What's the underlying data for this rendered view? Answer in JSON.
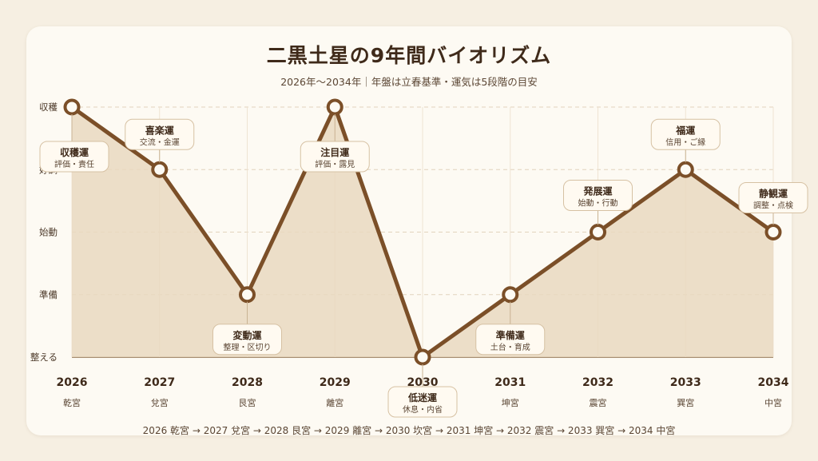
{
  "chart_data": {
    "type": "line",
    "title": "二黒土星の9年間バイオリズム",
    "subtitle": "2026年〜2034年｜年盤は立春基準・運気は5段階の目安",
    "y_levels": [
      "整える",
      "準備",
      "始動",
      "好調",
      "収穫"
    ],
    "ylim": [
      1,
      5
    ],
    "grid": true,
    "x": [
      "2026",
      "2027",
      "2028",
      "2029",
      "2030",
      "2031",
      "2032",
      "2033",
      "2034"
    ],
    "palaces": [
      "乾宮",
      "兌宮",
      "艮宮",
      "離宮",
      "坎宮",
      "坤宮",
      "震宮",
      "巽宮",
      "中宮"
    ],
    "values": [
      5,
      4,
      2,
      5,
      1,
      2,
      3,
      4,
      3
    ],
    "annotations": [
      {
        "title": "収穫運",
        "sub": "評価・責任"
      },
      {
        "title": "喜楽運",
        "sub": "交流・金運"
      },
      {
        "title": "変動運",
        "sub": "整理・区切り"
      },
      {
        "title": "注目運",
        "sub": "評価・露見"
      },
      {
        "title": "低迷運",
        "sub": "休息・内省"
      },
      {
        "title": "準備運",
        "sub": "土台・育成"
      },
      {
        "title": "発展運",
        "sub": "始動・行動"
      },
      {
        "title": "福運",
        "sub": "信用・ご縁"
      },
      {
        "title": "静観運",
        "sub": "調整・点検"
      }
    ],
    "line_color": "#7b4f28",
    "fill_color": "#e9d8bf"
  },
  "footer": "2026 乾宮 → 2027 兌宮 → 2028 艮宮 → 2029 離宮 → 2030 坎宮 → 2031 坤宮 → 2032 震宮 → 2033 巽宮 → 2034 中宮"
}
